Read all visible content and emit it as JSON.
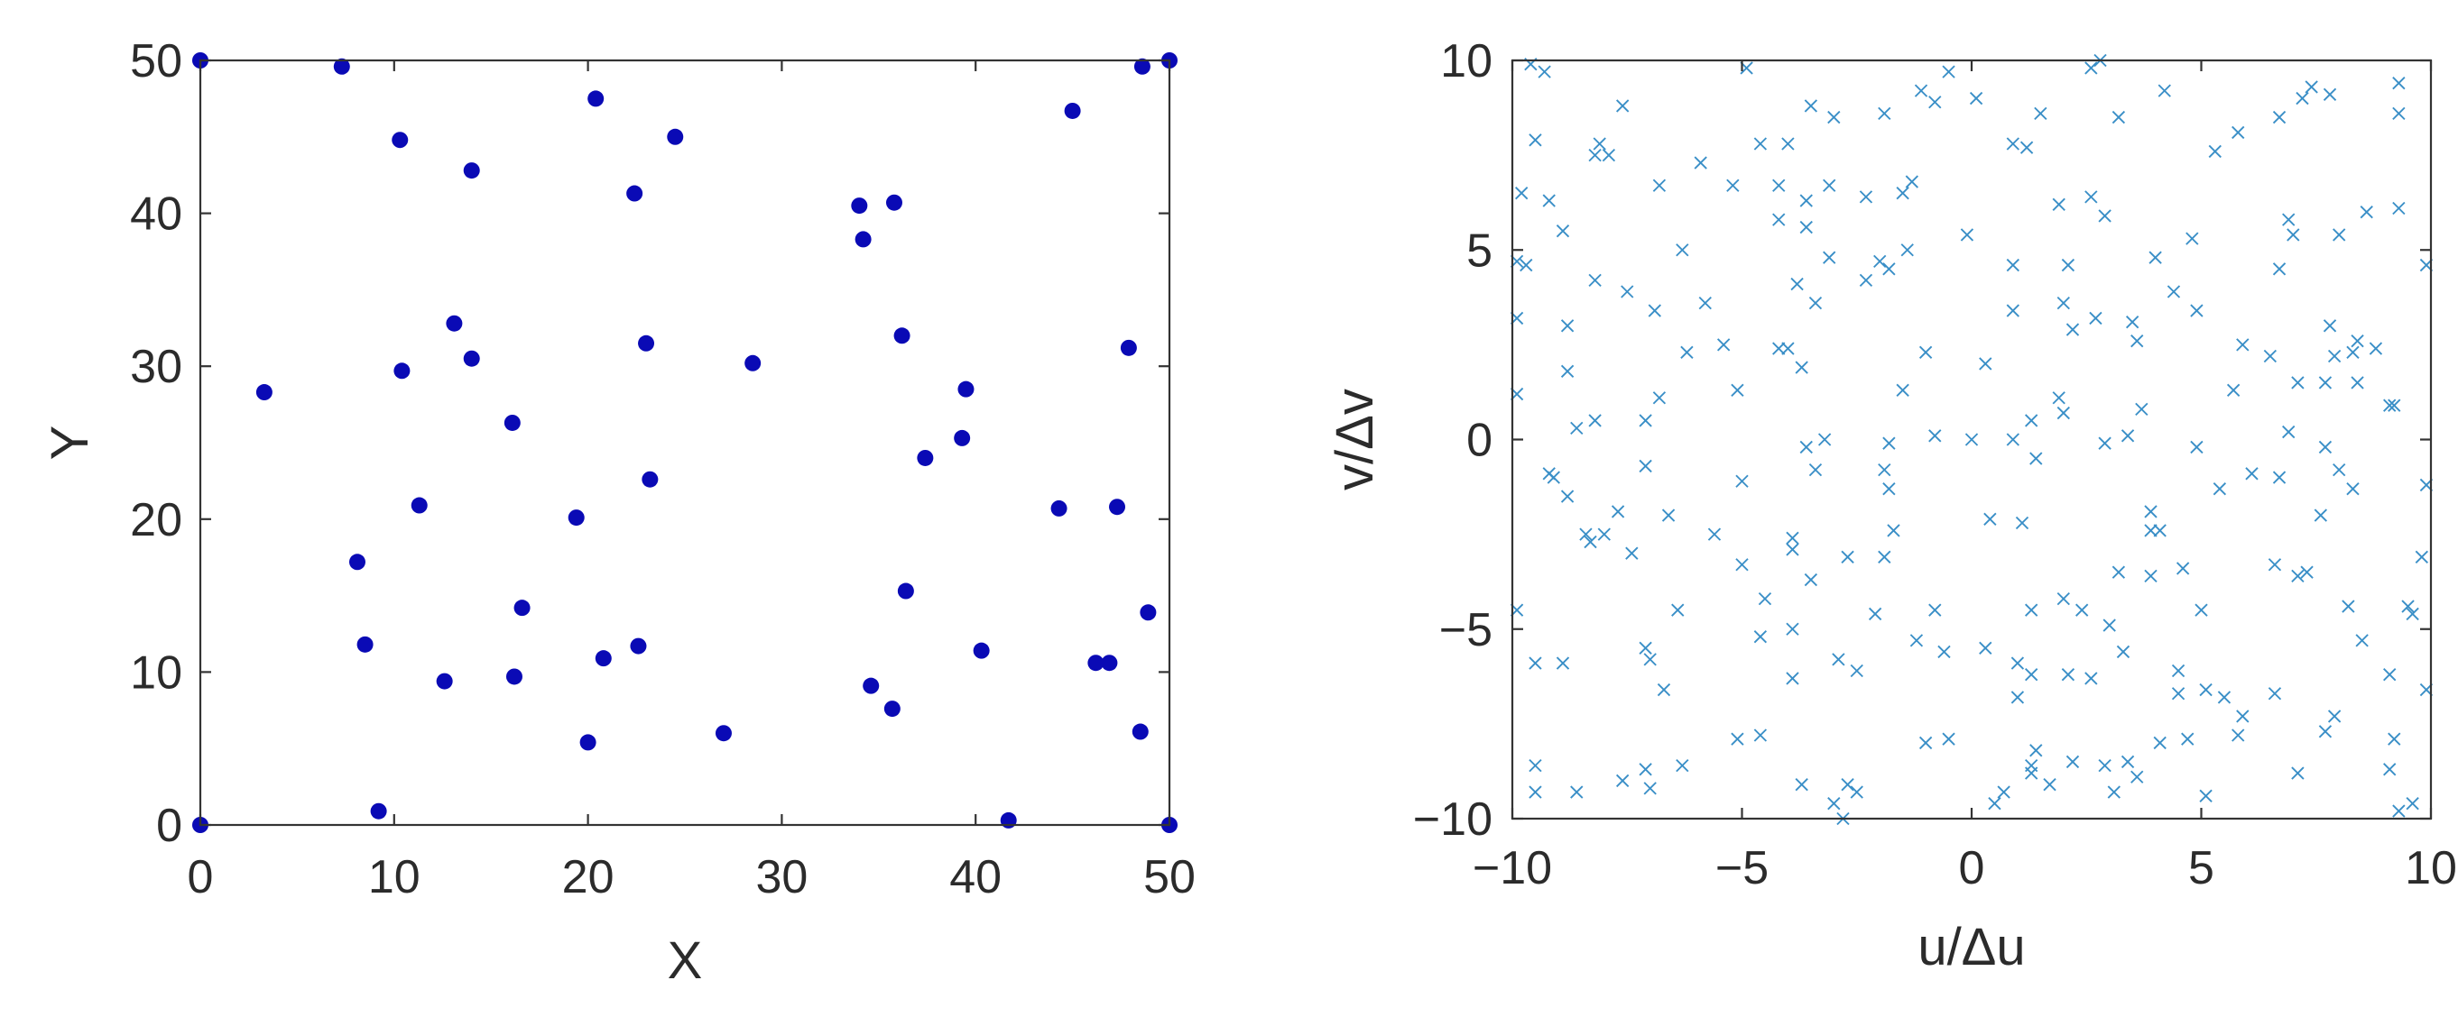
{
  "chart_data": [
    {
      "type": "scatter",
      "title": "",
      "xlabel": "X",
      "ylabel": "Y",
      "xlim": [
        0,
        50
      ],
      "ylim": [
        0,
        50
      ],
      "xticks": [
        0,
        10,
        20,
        30,
        40,
        50
      ],
      "yticks": [
        0,
        10,
        20,
        30,
        40,
        50
      ],
      "grid": false,
      "marker": "filled-circle",
      "color": "#0a0ab5",
      "points": [
        [
          0,
          50
        ],
        [
          7.3,
          49.6
        ],
        [
          48.6,
          49.6
        ],
        [
          50,
          50
        ],
        [
          20.4,
          47.5
        ],
        [
          45,
          46.7
        ],
        [
          10.3,
          44.8
        ],
        [
          24.5,
          45
        ],
        [
          14,
          42.8
        ],
        [
          22.4,
          41.3
        ],
        [
          34,
          40.5
        ],
        [
          35.8,
          40.7
        ],
        [
          34.2,
          38.3
        ],
        [
          13.1,
          32.8
        ],
        [
          36.2,
          32
        ],
        [
          23,
          31.5
        ],
        [
          47.9,
          31.2
        ],
        [
          14,
          30.5
        ],
        [
          28.5,
          30.2
        ],
        [
          10.4,
          29.7
        ],
        [
          3.3,
          28.3
        ],
        [
          39.5,
          28.5
        ],
        [
          16.1,
          26.3
        ],
        [
          39.3,
          25.3
        ],
        [
          37.4,
          24
        ],
        [
          23.2,
          22.6
        ],
        [
          11.3,
          20.9
        ],
        [
          44.3,
          20.7
        ],
        [
          47.3,
          20.8
        ],
        [
          19.4,
          20.1
        ],
        [
          8.1,
          17.2
        ],
        [
          36.4,
          15.3
        ],
        [
          16.6,
          14.2
        ],
        [
          48.9,
          13.9
        ],
        [
          8.5,
          11.8
        ],
        [
          22.6,
          11.7
        ],
        [
          20.8,
          10.9
        ],
        [
          40.3,
          11.4
        ],
        [
          46.2,
          10.6
        ],
        [
          46.9,
          10.6
        ],
        [
          12.6,
          9.4
        ],
        [
          16.2,
          9.7
        ],
        [
          34.6,
          9.1
        ],
        [
          35.7,
          7.6
        ],
        [
          27,
          6
        ],
        [
          48.5,
          6.1
        ],
        [
          20,
          5.4
        ],
        [
          9.2,
          0.9
        ],
        [
          41.7,
          0.3
        ],
        [
          0,
          0
        ],
        [
          50,
          0
        ]
      ]
    },
    {
      "type": "scatter",
      "title": "",
      "xlabel": "u/Δu",
      "ylabel": "v/Δv",
      "xlim": [
        -10,
        10
      ],
      "ylim": [
        -10,
        10
      ],
      "xticks": [
        -10,
        -5,
        0,
        5,
        10
      ],
      "yticks": [
        -10,
        -5,
        0,
        5,
        10
      ],
      "xtick_labels": [
        "−10",
        "−5",
        "0",
        "5",
        "10"
      ],
      "ytick_labels": [
        "−10",
        "−5",
        "0",
        "5",
        "10"
      ],
      "grid": false,
      "marker": "x",
      "color": "#3a8fc7",
      "points": [
        [
          -9.6,
          9.9
        ],
        [
          -9.3,
          9.7
        ],
        [
          -4.9,
          9.8
        ],
        [
          -1.1,
          9.2
        ],
        [
          -0.5,
          9.7
        ],
        [
          2.6,
          9.8
        ],
        [
          2.8,
          10
        ],
        [
          7.4,
          9.3
        ],
        [
          9.3,
          9.4
        ],
        [
          -7.6,
          8.8
        ],
        [
          -3.5,
          8.8
        ],
        [
          -3,
          8.5
        ],
        [
          -1.9,
          8.6
        ],
        [
          -0.8,
          8.9
        ],
        [
          0.1,
          9
        ],
        [
          1.5,
          8.6
        ],
        [
          3.2,
          8.5
        ],
        [
          4.2,
          9.2
        ],
        [
          6.7,
          8.5
        ],
        [
          7.2,
          9
        ],
        [
          7.8,
          9.1
        ],
        [
          9.3,
          8.6
        ],
        [
          -9.5,
          7.9
        ],
        [
          -8.2,
          7.5
        ],
        [
          -8.1,
          7.8
        ],
        [
          -7.9,
          7.5
        ],
        [
          -5.9,
          7.3
        ],
        [
          -4.6,
          7.8
        ],
        [
          -4.0,
          7.8
        ],
        [
          0.9,
          7.8
        ],
        [
          1.2,
          7.7
        ],
        [
          5.3,
          7.6
        ],
        [
          5.8,
          8.1
        ],
        [
          -9.8,
          6.5
        ],
        [
          -9.2,
          6.3
        ],
        [
          -6.8,
          6.7
        ],
        [
          -5.2,
          6.7
        ],
        [
          -4.2,
          6.7
        ],
        [
          -3.6,
          6.3
        ],
        [
          -3.1,
          6.7
        ],
        [
          -2.3,
          6.4
        ],
        [
          -1.5,
          6.5
        ],
        [
          -1.3,
          6.8
        ],
        [
          1.9,
          6.2
        ],
        [
          2.6,
          6.4
        ],
        [
          2.9,
          5.9
        ],
        [
          6.9,
          5.8
        ],
        [
          8.6,
          6
        ],
        [
          9.3,
          6.1
        ],
        [
          -9.9,
          4.7
        ],
        [
          -9.7,
          4.6
        ],
        [
          -8.9,
          5.5
        ],
        [
          -8.2,
          4.2
        ],
        [
          -6.3,
          5
        ],
        [
          -4.2,
          5.8
        ],
        [
          -3.6,
          5.6
        ],
        [
          -3.1,
          4.8
        ],
        [
          -2.0,
          4.7
        ],
        [
          -1.4,
          5
        ],
        [
          -0.1,
          5.4
        ],
        [
          0.9,
          4.6
        ],
        [
          2.1,
          4.6
        ],
        [
          4.0,
          4.8
        ],
        [
          4.8,
          5.3
        ],
        [
          6.7,
          4.5
        ],
        [
          7.0,
          5.4
        ],
        [
          8.0,
          5.4
        ],
        [
          9.9,
          4.6
        ],
        [
          -9.9,
          3.2
        ],
        [
          -8.8,
          3
        ],
        [
          -7.5,
          3.9
        ],
        [
          -6.9,
          3.4
        ],
        [
          -5.8,
          3.6
        ],
        [
          -3.8,
          4.1
        ],
        [
          -3.4,
          3.6
        ],
        [
          -2.3,
          4.2
        ],
        [
          -1.8,
          4.5
        ],
        [
          0.9,
          3.4
        ],
        [
          2,
          3.6
        ],
        [
          2.7,
          3.2
        ],
        [
          3.5,
          3.1
        ],
        [
          4.4,
          3.9
        ],
        [
          4.9,
          3.4
        ],
        [
          7.8,
          3
        ],
        [
          8.4,
          2.6
        ],
        [
          -6.2,
          2.3
        ],
        [
          -5.4,
          2.5
        ],
        [
          -4.2,
          2.4
        ],
        [
          -4.0,
          2.4
        ],
        [
          -3.7,
          1.9
        ],
        [
          -1.0,
          2.3
        ],
        [
          0.3,
          2
        ],
        [
          2.2,
          2.9
        ],
        [
          3.6,
          2.6
        ],
        [
          5.9,
          2.5
        ],
        [
          6.5,
          2.2
        ],
        [
          7.1,
          1.5
        ],
        [
          7.9,
          2.2
        ],
        [
          8.3,
          2.3
        ],
        [
          8.8,
          2.4
        ],
        [
          -9.9,
          1.2
        ],
        [
          -8.8,
          1.8
        ],
        [
          -6.8,
          1.1
        ],
        [
          -7.1,
          0.5
        ],
        [
          -5.1,
          1.3
        ],
        [
          -1.5,
          1.3
        ],
        [
          -0.8,
          0.1
        ],
        [
          1.3,
          0.5
        ],
        [
          1.9,
          1.1
        ],
        [
          2,
          0.7
        ],
        [
          3.4,
          0.1
        ],
        [
          3.7,
          0.8
        ],
        [
          5.7,
          1.3
        ],
        [
          7.7,
          1.5
        ],
        [
          8.4,
          1.5
        ],
        [
          9.1,
          0.9
        ],
        [
          9.2,
          0.9
        ],
        [
          -8.6,
          0.3
        ],
        [
          -8.2,
          0.5
        ],
        [
          -3.6,
          -0.2
        ],
        [
          -3.2,
          0
        ],
        [
          -1.8,
          -0.1
        ],
        [
          0,
          0
        ],
        [
          0.9,
          0
        ],
        [
          1.4,
          -0.5
        ],
        [
          2.9,
          -0.1
        ],
        [
          4.9,
          -0.2
        ],
        [
          6.9,
          0.2
        ],
        [
          7.7,
          -0.2
        ],
        [
          -9.2,
          -0.9
        ],
        [
          -9.1,
          -1
        ],
        [
          -7.1,
          -0.7
        ],
        [
          -5.0,
          -1.1
        ],
        [
          -3.4,
          -0.8
        ],
        [
          -1.9,
          -0.8
        ],
        [
          -1.8,
          -1.3
        ],
        [
          5.4,
          -1.3
        ],
        [
          6.1,
          -0.9
        ],
        [
          6.7,
          -1.0
        ],
        [
          8.0,
          -0.8
        ],
        [
          8.3,
          -1.3
        ],
        [
          9.9,
          -1.2
        ],
        [
          -8.8,
          -1.5
        ],
        [
          -8.4,
          -2.5
        ],
        [
          -8.0,
          -2.5
        ],
        [
          -7.7,
          -1.9
        ],
        [
          -6.6,
          -2
        ],
        [
          -5.6,
          -2.5
        ],
        [
          -3.9,
          -2.6
        ],
        [
          -1.7,
          -2.4
        ],
        [
          0.4,
          -2.1
        ],
        [
          1.1,
          -2.2
        ],
        [
          3.9,
          -2.4
        ],
        [
          3.9,
          -1.9
        ],
        [
          4.1,
          -2.4
        ],
        [
          7.6,
          -2.0
        ],
        [
          -8.3,
          -2.7
        ],
        [
          -7.4,
          -3
        ],
        [
          -5.0,
          -3.3
        ],
        [
          -3.9,
          -2.9
        ],
        [
          -3.5,
          -3.7
        ],
        [
          -2.7,
          -3.1
        ],
        [
          -1.9,
          -3.1
        ],
        [
          1.3,
          -4.5
        ],
        [
          2.4,
          -4.5
        ],
        [
          3.2,
          -3.5
        ],
        [
          4.6,
          -3.4
        ],
        [
          5.0,
          -4.5
        ],
        [
          6.6,
          -3.3
        ],
        [
          7.1,
          -3.6
        ],
        [
          7.3,
          -3.5
        ],
        [
          9.5,
          -4.4
        ],
        [
          9.8,
          -3.1
        ],
        [
          -9.9,
          -4.5
        ],
        [
          -6.4,
          -4.5
        ],
        [
          -4.5,
          -4.2
        ],
        [
          -2.1,
          -4.6
        ],
        [
          -0.8,
          -4.5
        ],
        [
          2.0,
          -4.2
        ],
        [
          3.0,
          -4.9
        ],
        [
          3.9,
          -3.6
        ],
        [
          8.2,
          -4.4
        ],
        [
          9.6,
          -4.6
        ],
        [
          -9.5,
          -5.9
        ],
        [
          -8.9,
          -5.9
        ],
        [
          -7.1,
          -5.5
        ],
        [
          -7.0,
          -5.8
        ],
        [
          -4.6,
          -5.2
        ],
        [
          -3.9,
          -5
        ],
        [
          -2.9,
          -5.8
        ],
        [
          -1.2,
          -5.3
        ],
        [
          -0.6,
          -5.6
        ],
        [
          0.3,
          -5.5
        ],
        [
          1,
          -5.9
        ],
        [
          1.3,
          -6.2
        ],
        [
          2.1,
          -6.2
        ],
        [
          3.3,
          -5.6
        ],
        [
          4.5,
          -6.1
        ],
        [
          5.1,
          -6.6
        ],
        [
          8.5,
          -5.3
        ],
        [
          -6.7,
          -6.6
        ],
        [
          -3.9,
          -6.3
        ],
        [
          -2.5,
          -6.1
        ],
        [
          1.0,
          -6.8
        ],
        [
          2.6,
          -6.3
        ],
        [
          4.5,
          -6.7
        ],
        [
          5.5,
          -6.8
        ],
        [
          5.9,
          -7.3
        ],
        [
          6.6,
          -6.7
        ],
        [
          9.1,
          -6.2
        ],
        [
          9.9,
          -6.6
        ],
        [
          -5.1,
          -7.9
        ],
        [
          -4.6,
          -7.8
        ],
        [
          -1.0,
          -8
        ],
        [
          -0.5,
          -7.9
        ],
        [
          1.4,
          -8.2
        ],
        [
          2.2,
          -8.5
        ],
        [
          3.4,
          -8.5
        ],
        [
          4.1,
          -8.0
        ],
        [
          4.7,
          -7.9
        ],
        [
          7.1,
          -8.8
        ],
        [
          7.7,
          -7.7
        ],
        [
          7.9,
          -7.3
        ],
        [
          9.2,
          -7.9
        ],
        [
          -9.5,
          -8.6
        ],
        [
          -7.6,
          -9
        ],
        [
          -7.1,
          -8.7
        ],
        [
          -6.3,
          -8.6
        ],
        [
          -3.7,
          -9.1
        ],
        [
          -2.7,
          -9.1
        ],
        [
          -2.5,
          -9.3
        ],
        [
          0.7,
          -9.3
        ],
        [
          1.3,
          -8.6
        ],
        [
          1.7,
          -9.1
        ],
        [
          2.9,
          -8.6
        ],
        [
          3.6,
          -8.9
        ],
        [
          5.8,
          -7.8
        ],
        [
          9.1,
          -8.7
        ],
        [
          9.6,
          -9.6
        ],
        [
          -9.5,
          -9.3
        ],
        [
          -8.6,
          -9.3
        ],
        [
          -7.0,
          -9.2
        ],
        [
          -3.0,
          -9.6
        ],
        [
          -2.8,
          -10
        ],
        [
          0.5,
          -9.6
        ],
        [
          1.3,
          -8.8
        ],
        [
          3.1,
          -9.3
        ],
        [
          5.1,
          -9.4
        ],
        [
          9.3,
          -9.8
        ]
      ]
    }
  ]
}
